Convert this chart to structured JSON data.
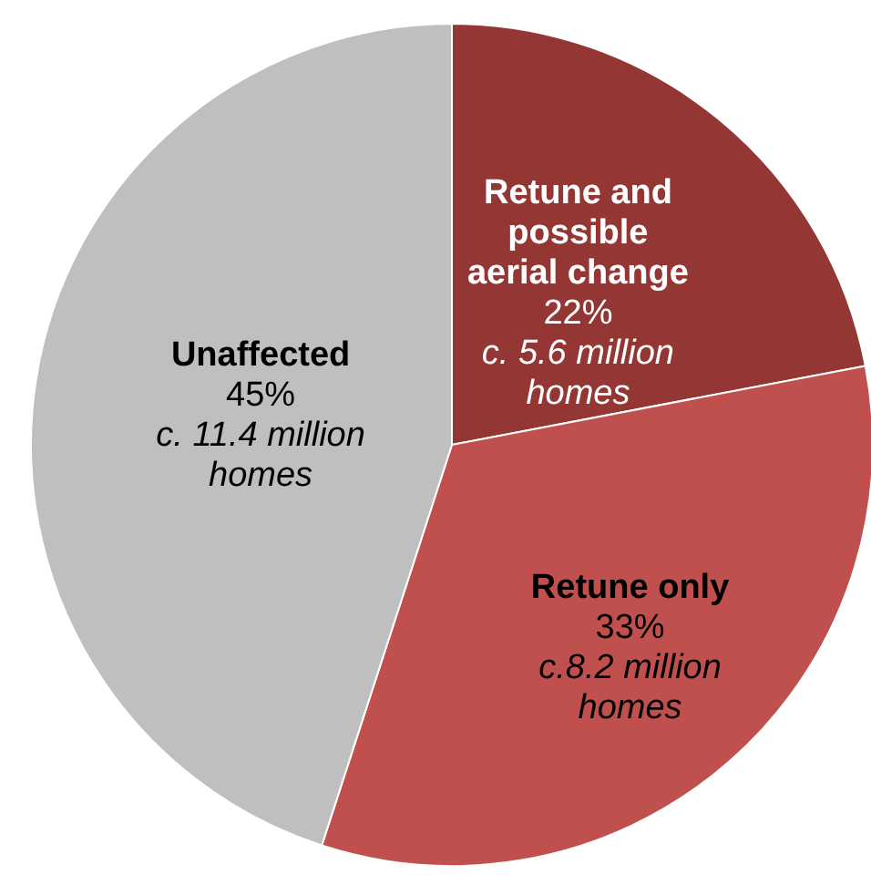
{
  "chart_data": {
    "type": "pie",
    "categories": [
      "Retune and possible aerial change",
      "Retune only",
      "Unaffected"
    ],
    "values": [
      22,
      33,
      45
    ],
    "colors": [
      "#943634",
      "#c0504d",
      "#bfbfbf"
    ],
    "value_labels": [
      "22%",
      "33%",
      "45%"
    ],
    "annotations": [
      {
        "text": "c. 5.6 million homes",
        "x": "Retune and possible aerial change"
      },
      {
        "text": "c.8.2 million homes",
        "x": "Retune only"
      },
      {
        "text": "c. 11.4 million homes",
        "x": "Unaffected"
      }
    ]
  }
}
